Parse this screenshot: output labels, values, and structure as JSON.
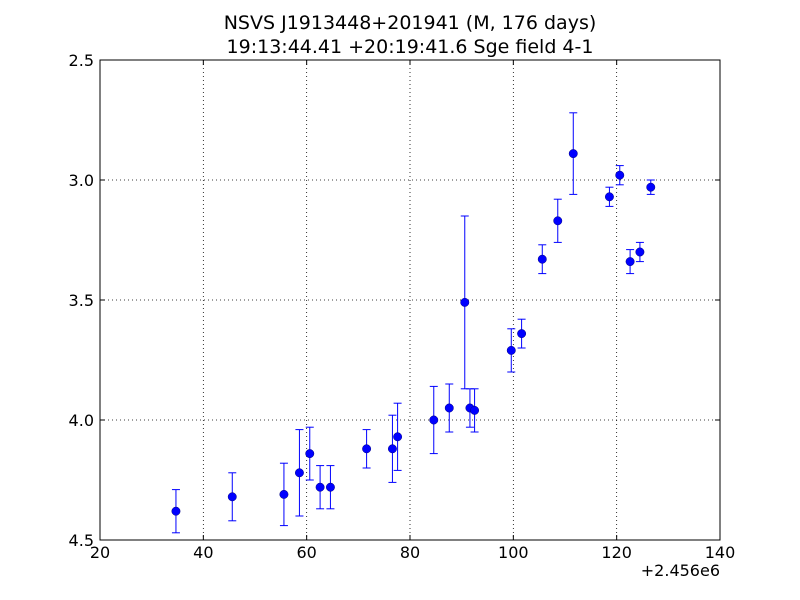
{
  "chart_data": {
    "type": "scatter",
    "title_line1": "NSVS J1913448+201941 (M, 176 days)",
    "title_line2": "19:13:44.41 +20:19:41.6 Sge field 4-1",
    "x_offset_label": "+2.456e6",
    "xlim": [
      20,
      140
    ],
    "ylim": [
      2.5,
      4.5
    ],
    "y_inverted": true,
    "grid": true,
    "xticks": [
      "20",
      "40",
      "60",
      "80",
      "100",
      "120",
      "140"
    ],
    "yticks": [
      "2.5",
      "3.0",
      "3.5",
      "4.0",
      "4.5"
    ],
    "marker_color": "#0000ff",
    "series": [
      {
        "points": [
          {
            "x": 34.7,
            "y": 4.38,
            "err": 0.09
          },
          {
            "x": 45.6,
            "y": 4.32,
            "err": 0.1
          },
          {
            "x": 55.6,
            "y": 4.31,
            "err": 0.13
          },
          {
            "x": 58.6,
            "y": 4.22,
            "err": 0.18
          },
          {
            "x": 60.6,
            "y": 4.14,
            "err": 0.11
          },
          {
            "x": 62.6,
            "y": 4.28,
            "err": 0.09
          },
          {
            "x": 64.6,
            "y": 4.28,
            "err": 0.09
          },
          {
            "x": 71.6,
            "y": 4.12,
            "err": 0.08
          },
          {
            "x": 76.6,
            "y": 4.12,
            "err": 0.14
          },
          {
            "x": 77.6,
            "y": 4.07,
            "err": 0.14
          },
          {
            "x": 84.6,
            "y": 4.0,
            "err": 0.14
          },
          {
            "x": 87.6,
            "y": 3.95,
            "err": 0.1
          },
          {
            "x": 90.6,
            "y": 3.51,
            "err": 0.36
          },
          {
            "x": 91.6,
            "y": 3.95,
            "err": 0.08
          },
          {
            "x": 92.5,
            "y": 3.96,
            "err": 0.09
          },
          {
            "x": 99.6,
            "y": 3.71,
            "err": 0.09
          },
          {
            "x": 101.6,
            "y": 3.64,
            "err": 0.06
          },
          {
            "x": 105.6,
            "y": 3.33,
            "err": 0.06
          },
          {
            "x": 108.6,
            "y": 3.17,
            "err": 0.09
          },
          {
            "x": 111.6,
            "y": 2.89,
            "err": 0.17
          },
          {
            "x": 118.6,
            "y": 3.07,
            "err": 0.04
          },
          {
            "x": 120.6,
            "y": 2.98,
            "err": 0.04
          },
          {
            "x": 122.6,
            "y": 3.34,
            "err": 0.05
          },
          {
            "x": 124.5,
            "y": 3.3,
            "err": 0.04
          },
          {
            "x": 126.6,
            "y": 3.03,
            "err": 0.03
          }
        ]
      }
    ]
  }
}
